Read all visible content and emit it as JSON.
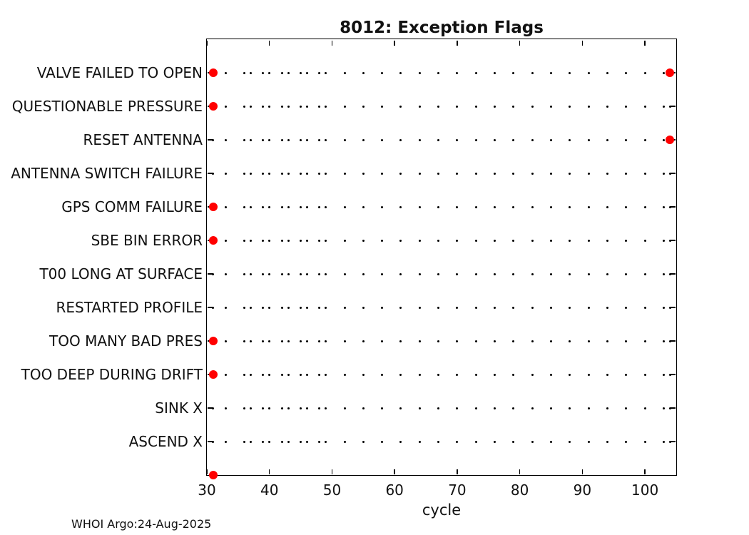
{
  "figure": {
    "title": "8012: Exception Flags",
    "xlabel": "cycle",
    "footer": "WHOI Argo:24-Aug-2025"
  },
  "chart_data": {
    "type": "scatter",
    "title": "8012: Exception Flags",
    "xlabel": "cycle",
    "ylabel": "",
    "xlim": [
      30,
      105
    ],
    "xticks": [
      30,
      40,
      50,
      60,
      70,
      80,
      90,
      100
    ],
    "grid": false,
    "legend": "none",
    "colors": {
      "flag_marker": "#ff0000",
      "cycle_marker": "#000000",
      "axis": "#000000"
    },
    "cycles_with_data": [
      31,
      33,
      36,
      37,
      39,
      40,
      42,
      43,
      45,
      46,
      48,
      49,
      52,
      55,
      58,
      61,
      64,
      67,
      70,
      73,
      76,
      79,
      82,
      85,
      88,
      91,
      94,
      97,
      100,
      103,
      104
    ],
    "rows": [
      {
        "label": "VALVE FAILED TO OPEN",
        "flag_cycles": [
          31,
          104
        ],
        "has_dotted_line": true
      },
      {
        "label": "QUESTIONABLE PRESSURE",
        "flag_cycles": [
          31
        ],
        "has_dotted_line": true
      },
      {
        "label": "RESET ANTENNA",
        "flag_cycles": [
          104
        ],
        "has_dotted_line": true
      },
      {
        "label": "ANTENNA SWITCH FAILURE",
        "flag_cycles": [],
        "has_dotted_line": true
      },
      {
        "label": "GPS COMM FAILURE",
        "flag_cycles": [
          31
        ],
        "has_dotted_line": true
      },
      {
        "label": "SBE BIN ERROR",
        "flag_cycles": [
          31
        ],
        "has_dotted_line": true
      },
      {
        "label": "T00 LONG AT SURFACE",
        "flag_cycles": [],
        "has_dotted_line": true
      },
      {
        "label": "RESTARTED PROFILE",
        "flag_cycles": [],
        "has_dotted_line": true
      },
      {
        "label": "TOO MANY BAD PRES",
        "flag_cycles": [
          31
        ],
        "has_dotted_line": true
      },
      {
        "label": "TOO DEEP DURING DRIFT",
        "flag_cycles": [
          31
        ],
        "has_dotted_line": true
      },
      {
        "label": "SINK X",
        "flag_cycles": [],
        "has_dotted_line": true
      },
      {
        "label": "ASCEND X",
        "flag_cycles": [],
        "has_dotted_line": true
      },
      {
        "label": "",
        "flag_cycles": [
          31
        ],
        "has_dotted_line": false
      }
    ]
  }
}
